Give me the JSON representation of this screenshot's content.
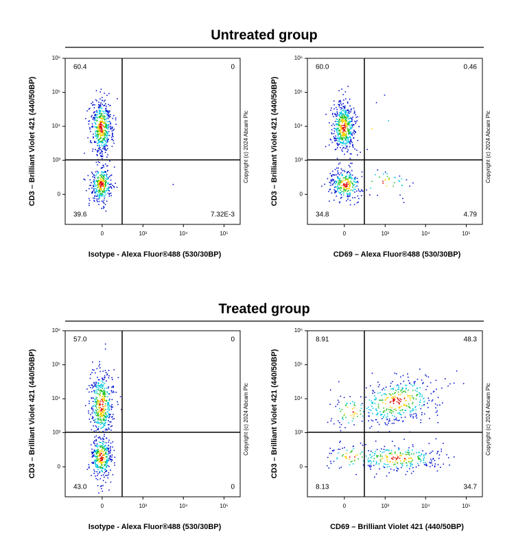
{
  "groups": [
    "Untreated group",
    "Treated group"
  ],
  "chart_data": [
    {
      "type": "quadrant",
      "xlabel": "Isotype - Alexa Fluor®488 (530/30BP)",
      "ylabel": "CD3 – Brilliant Violet 421 (440/50BP)",
      "copyright": "Copyright (c) 2024 Abcam Plc",
      "values": [
        60.4,
        0,
        39.6,
        0.00732
      ],
      "value_labels": [
        "60.4",
        "0",
        "39.6",
        "7.32E-3"
      ],
      "xlim": [
        -800,
        250000
      ],
      "ylim": [
        -750,
        1000000
      ],
      "xticks": [
        0,
        {
          "value": 1000,
          "label": "10³"
        },
        {
          "value": 10000,
          "label": "10⁴"
        },
        {
          "value": 100000,
          "label": "10⁵"
        }
      ],
      "yticks": [
        0,
        {
          "value": 1000,
          "label": "10³"
        },
        {
          "value": 10000,
          "label": "10⁴"
        },
        {
          "value": 100000,
          "label": "10⁵"
        },
        {
          "value": 1000000,
          "label": "10⁶"
        }
      ]
    },
    {
      "type": "quadrant",
      "xlabel": "CD69 – Alexa Fluor®488 (530/30BP)",
      "ylabel": "CD3 – Brilliant Violet 421 (440/50BP)",
      "copyright": "Copyright (c) 2024 Abcam Plc",
      "values": [
        60.0,
        0.46,
        34.8,
        4.79
      ],
      "value_labels": [
        "60.0",
        "0.46",
        "34.8",
        "4.79"
      ],
      "xlim": [
        -800,
        250000
      ],
      "ylim": [
        -750,
        1000000
      ],
      "xticks": [
        0,
        {
          "value": 1000,
          "label": "10³"
        },
        {
          "value": 10000,
          "label": "10⁴"
        },
        {
          "value": 100000,
          "label": "10⁵"
        }
      ],
      "yticks": [
        0,
        {
          "value": 1000,
          "label": "10³"
        },
        {
          "value": 10000,
          "label": "10⁴"
        },
        {
          "value": 100000,
          "label": "10⁵"
        },
        {
          "value": 1000000,
          "label": "10⁶"
        }
      ]
    },
    {
      "type": "quadrant",
      "xlabel": "Isotype - Alexa Fluor®488 (530/30BP)",
      "ylabel": "CD3 – Brilliant Violet 421 (440/50BP)",
      "copyright": "Copyright (c) 2024 Abcam Plc",
      "values": [
        57.0,
        0,
        43.0,
        0
      ],
      "value_labels": [
        "57.0",
        "0",
        "43.0",
        "0"
      ],
      "xlim": [
        -800,
        250000
      ],
      "ylim": [
        -750,
        1000000
      ],
      "xticks": [
        0,
        {
          "value": 1000,
          "label": "10³"
        },
        {
          "value": 10000,
          "label": "10⁴"
        },
        {
          "value": 100000,
          "label": "10⁵"
        }
      ],
      "yticks": [
        0,
        {
          "value": 1000,
          "label": "10³"
        },
        {
          "value": 10000,
          "label": "10⁴"
        },
        {
          "value": 100000,
          "label": "10⁵"
        },
        {
          "value": 1000000,
          "label": "10⁶"
        }
      ]
    },
    {
      "type": "quadrant",
      "xlabel": "CD69 – Brilliant Violet 421 (440/50BP)",
      "ylabel": "CD3 – Brilliant Violet 421 (440/50BP)",
      "copyright": "Copyright (c) 2024 Abcam Plc",
      "values": [
        8.91,
        48.3,
        8.13,
        34.7
      ],
      "value_labels": [
        "8.91",
        "48.3",
        "8.13",
        "34.7"
      ],
      "xlim": [
        -800,
        250000
      ],
      "ylim": [
        -750,
        1000000
      ],
      "xticks": [
        0,
        {
          "value": 1000,
          "label": "10³"
        },
        {
          "value": 10000,
          "label": "10⁴"
        },
        {
          "value": 100000,
          "label": "10⁵"
        }
      ],
      "yticks": [
        0,
        {
          "value": 1000,
          "label": "10³"
        },
        {
          "value": 10000,
          "label": "10⁴"
        },
        {
          "value": 100000,
          "label": "10⁵"
        },
        {
          "value": 1000000,
          "label": "10⁶"
        }
      ]
    }
  ]
}
